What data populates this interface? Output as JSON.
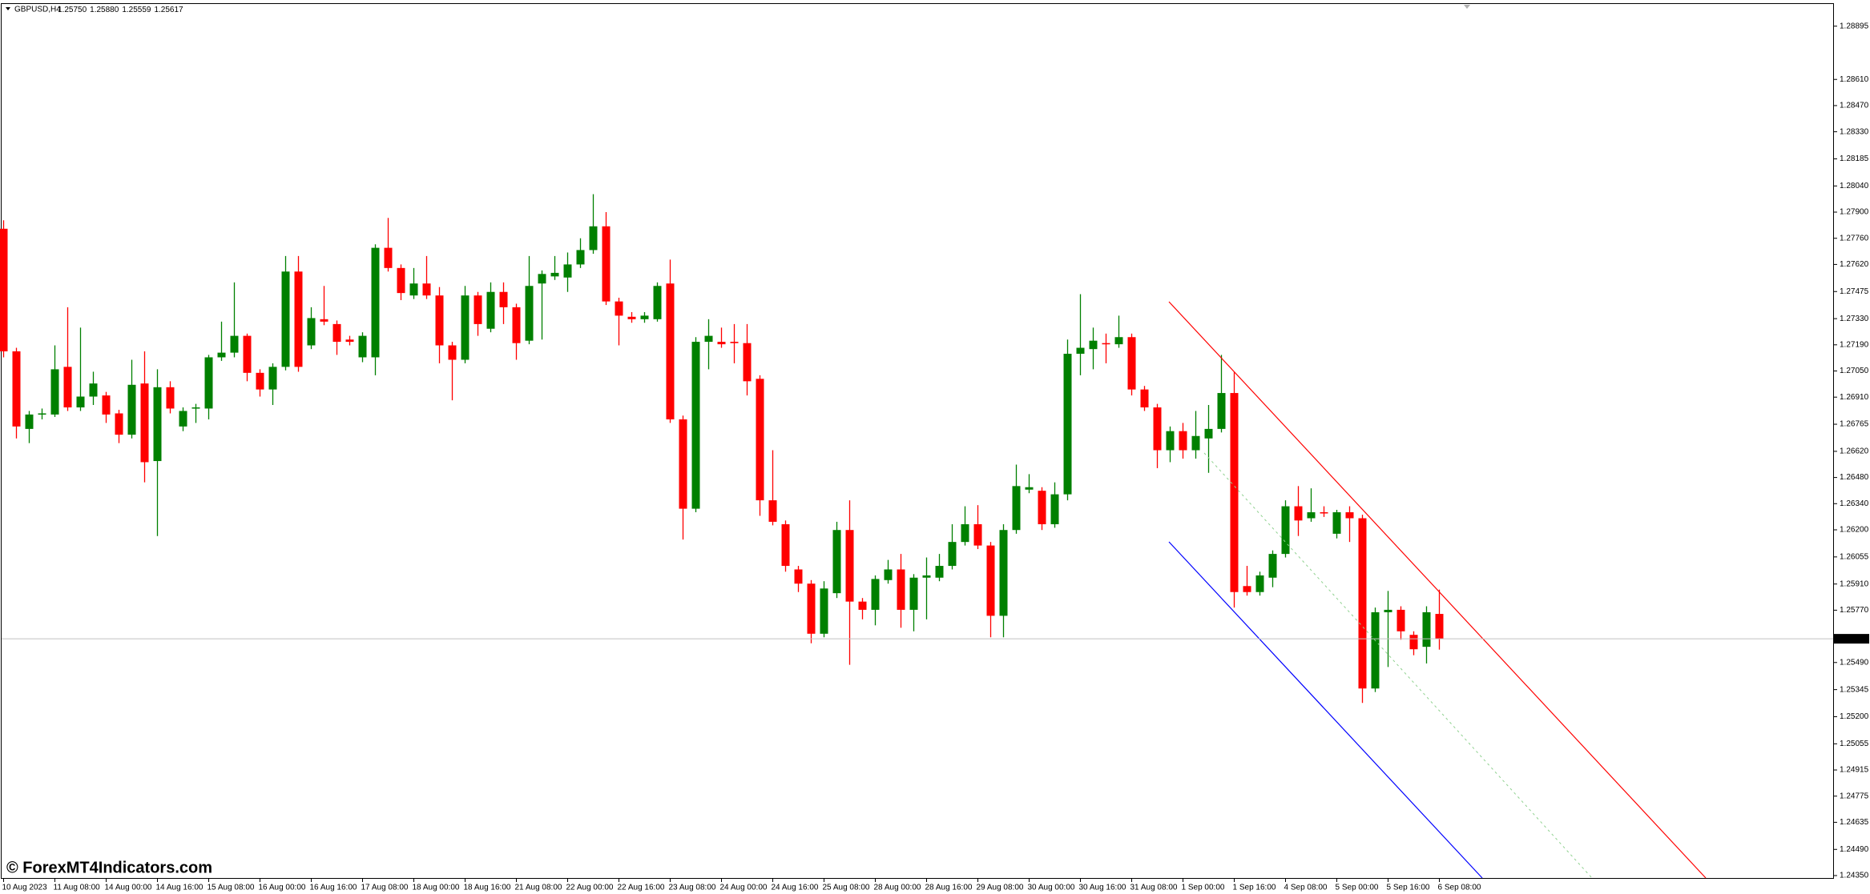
{
  "chart_data": {
    "type": "candlestick",
    "title": "GBPUSD,H4",
    "ohlc_labels": [
      "1.25750",
      "1.25880",
      "1.25559",
      "1.25617"
    ],
    "watermark": "© ForexMT4Indicators.com",
    "up_color": "#008000",
    "down_color": "#ff0000",
    "ylim": [
      1.24337,
      1.29035
    ],
    "current_price": {
      "value": 1.25617,
      "label": "1.25617"
    },
    "yticks": [
      {
        "value": 1.28895,
        "label": "1.28895"
      },
      {
        "value": 1.2861,
        "label": "1.28610"
      },
      {
        "value": 1.2847,
        "label": "1.28470"
      },
      {
        "value": 1.2833,
        "label": "1.28330"
      },
      {
        "value": 1.28185,
        "label": "1.28185"
      },
      {
        "value": 1.2804,
        "label": "1.28040"
      },
      {
        "value": 1.279,
        "label": "1.27900"
      },
      {
        "value": 1.2776,
        "label": "1.27760"
      },
      {
        "value": 1.2762,
        "label": "1.27620"
      },
      {
        "value": 1.27475,
        "label": "1.27475"
      },
      {
        "value": 1.2733,
        "label": "1.27330"
      },
      {
        "value": 1.2719,
        "label": "1.27190"
      },
      {
        "value": 1.2705,
        "label": "1.27050"
      },
      {
        "value": 1.2691,
        "label": "1.26910"
      },
      {
        "value": 1.26765,
        "label": "1.26765"
      },
      {
        "value": 1.2662,
        "label": "1.26620"
      },
      {
        "value": 1.2648,
        "label": "1.26480"
      },
      {
        "value": 1.2634,
        "label": "1.26340"
      },
      {
        "value": 1.262,
        "label": "1.26200"
      },
      {
        "value": 1.26055,
        "label": "1.26055"
      },
      {
        "value": 1.2591,
        "label": "1.25910"
      },
      {
        "value": 1.2577,
        "label": "1.25770"
      },
      {
        "value": 1.2549,
        "label": "1.25490"
      },
      {
        "value": 1.25345,
        "label": "1.25345"
      },
      {
        "value": 1.252,
        "label": "1.25200"
      },
      {
        "value": 1.25055,
        "label": "1.25055"
      },
      {
        "value": 1.24915,
        "label": "1.24915"
      },
      {
        "value": 1.24775,
        "label": "1.24775"
      },
      {
        "value": 1.24635,
        "label": "1.24635"
      },
      {
        "value": 1.2449,
        "label": "1.24490"
      },
      {
        "value": 1.2435,
        "label": "1.24350"
      }
    ],
    "categories": [
      "10 Aug 2023",
      null,
      null,
      null,
      "11 Aug 08:00",
      null,
      null,
      null,
      "14 Aug 00:00",
      null,
      null,
      null,
      "14 Aug 16:00",
      null,
      null,
      null,
      "15 Aug 08:00",
      null,
      null,
      null,
      "16 Aug 00:00",
      null,
      null,
      null,
      "16 Aug 16:00",
      null,
      null,
      null,
      "17 Aug 08:00",
      null,
      null,
      null,
      "18 Aug 00:00",
      null,
      null,
      null,
      "18 Aug 16:00",
      null,
      null,
      null,
      "21 Aug 08:00",
      null,
      null,
      null,
      "22 Aug 00:00",
      null,
      null,
      null,
      "22 Aug 16:00",
      null,
      null,
      null,
      "23 Aug 08:00",
      null,
      null,
      null,
      "24 Aug 00:00",
      null,
      null,
      null,
      "24 Aug 16:00",
      null,
      null,
      null,
      "25 Aug 08:00",
      null,
      null,
      null,
      "28 Aug 00:00",
      null,
      null,
      null,
      "28 Aug 16:00",
      null,
      null,
      null,
      "29 Aug 08:00",
      null,
      null,
      null,
      "30 Aug 00:00",
      null,
      null,
      null,
      "30 Aug 16:00",
      null,
      null,
      null,
      "31 Aug 08:00",
      null,
      null,
      null,
      "1 Sep 00:00",
      null,
      null,
      null,
      "1 Sep 16:00",
      null,
      null,
      null,
      "4 Sep 08:00",
      null,
      null,
      null,
      "5 Sep 00:00",
      null,
      null,
      null,
      "5 Sep 16:00",
      null,
      null,
      null,
      "6 Sep 08:00"
    ],
    "open": [
      1.27811,
      1.27155,
      1.2674,
      1.26817,
      1.26817,
      1.27072,
      1.26855,
      1.26913,
      1.26919,
      1.26823,
      1.26709,
      1.26983,
      1.26568,
      1.26963,
      1.26753,
      1.26849,
      1.26849,
      1.27123,
      1.27148,
      1.27238,
      1.2704,
      1.26951,
      1.27072,
      1.27582,
      1.27187,
      1.27327,
      1.27301,
      1.27218,
      1.27123,
      1.27123,
      1.27709,
      1.27601,
      1.27454,
      1.27518,
      1.27454,
      1.27187,
      1.2711,
      1.27454,
      1.27276,
      1.27473,
      1.27391,
      1.27212,
      1.27518,
      1.27556,
      1.2755,
      1.2762,
      1.27697,
      1.27824,
      1.27422,
      1.2734,
      1.27327,
      1.27327,
      1.27518,
      1.26791,
      1.26313,
      1.27206,
      1.27206,
      1.27206,
      1.27199,
      1.27008,
      1.26358,
      1.2623,
      1.25988,
      1.25912,
      1.25644,
      1.25861,
      1.26199,
      1.25816,
      1.25772,
      1.25931,
      1.25988,
      1.25772,
      1.25944,
      1.25944,
      1.26007,
      1.26135,
      1.2623,
      1.26116,
      1.2574,
      1.26199,
      1.26415,
      1.26409,
      1.2623,
      1.2639,
      1.27142,
      1.27167,
      1.27199,
      1.27193,
      1.27231,
      1.26951,
      1.26855,
      1.26626,
      1.26728,
      1.26626,
      1.26689,
      1.2674,
      1.26932,
      1.25899,
      1.25867,
      1.25944,
      1.26071,
      1.26326,
      1.26262,
      1.26294,
      1.26179,
      1.26294,
      1.26262,
      1.25351,
      1.25759,
      1.25772,
      1.25638,
      1.25574,
      1.2575
    ],
    "high": [
      1.27856,
      1.27174,
      1.26836,
      1.26849,
      1.27187,
      1.27391,
      1.27282,
      1.27046,
      1.26938,
      1.26842,
      1.2711,
      1.27155,
      1.27059,
      1.26995,
      1.26855,
      1.26874,
      1.27136,
      1.27314,
      1.27524,
      1.2725,
      1.27059,
      1.27091,
      1.27665,
      1.27665,
      1.27391,
      1.27505,
      1.2732,
      1.27238,
      1.27257,
      1.27728,
      1.27869,
      1.2762,
      1.27601,
      1.27665,
      1.27499,
      1.27206,
      1.27505,
      1.27473,
      1.27524,
      1.27524,
      1.2741,
      1.27665,
      1.27588,
      1.27665,
      1.27684,
      1.2776,
      1.27996,
      1.279,
      1.27442,
      1.27365,
      1.27365,
      1.27524,
      1.27646,
      1.26811,
      1.27231,
      1.27327,
      1.27282,
      1.27301,
      1.27301,
      1.27027,
      1.26626,
      1.2625,
      1.26007,
      1.25931,
      1.25925,
      1.26243,
      1.26358,
      1.25835,
      1.25956,
      1.26039,
      1.26071,
      1.25963,
      1.26052,
      1.26071,
      1.2623,
      1.26326,
      1.26332,
      1.26135,
      1.2623,
      1.26549,
      1.26498,
      1.26428,
      1.26454,
      1.27218,
      1.27461,
      1.27282,
      1.2725,
      1.27346,
      1.2725,
      1.2697,
      1.26874,
      1.26753,
      1.26772,
      1.26836,
      1.26868,
      1.27136,
      1.27046,
      1.26007,
      1.25976,
      1.2609,
      1.26358,
      1.26434,
      1.26422,
      1.26326,
      1.26307,
      1.26326,
      1.26281,
      1.25784,
      1.25873,
      1.25791,
      1.25657,
      1.25791,
      1.2588
    ],
    "low": [
      1.27123,
      1.26689,
      1.26664,
      1.26791,
      1.26804,
      1.26836,
      1.26836,
      1.26868,
      1.26772,
      1.26664,
      1.26689,
      1.26454,
      1.26167,
      1.26823,
      1.26728,
      1.26772,
      1.26791,
      1.27104,
      1.27123,
      1.26995,
      1.26913,
      1.26868,
      1.27053,
      1.27046,
      1.27167,
      1.27295,
      1.27136,
      1.27187,
      1.27097,
      1.27027,
      1.27582,
      1.27429,
      1.27435,
      1.27435,
      1.27091,
      1.26893,
      1.27091,
      1.27238,
      1.27257,
      1.27301,
      1.2711,
      1.27193,
      1.27218,
      1.27537,
      1.27473,
      1.27601,
      1.27677,
      1.27403,
      1.27187,
      1.27308,
      1.27308,
      1.27314,
      1.26772,
      1.26148,
      1.26294,
      1.27059,
      1.27174,
      1.27091,
      1.26919,
      1.26275,
      1.26224,
      1.25976,
      1.25867,
      1.25593,
      1.25625,
      1.25835,
      1.25478,
      1.25721,
      1.25689,
      1.25912,
      1.25676,
      1.25657,
      1.25721,
      1.25925,
      1.25988,
      1.26116,
      1.26097,
      1.25625,
      1.25625,
      1.26179,
      1.26396,
      1.26199,
      1.26211,
      1.26358,
      1.27027,
      1.27059,
      1.27091,
      1.27174,
      1.26919,
      1.26836,
      1.2653,
      1.26562,
      1.26581,
      1.26581,
      1.26505,
      1.26721,
      1.25784,
      1.25848,
      1.25848,
      1.25893,
      1.26052,
      1.26167,
      1.26243,
      1.26269,
      1.26154,
      1.26135,
      1.25274,
      1.25332,
      1.25466,
      1.25612,
      1.25529,
      1.25485,
      1.25559
    ],
    "close": [
      1.27155,
      1.26753,
      1.26817,
      1.26823,
      1.27059,
      1.26855,
      1.26913,
      1.26983,
      1.26817,
      1.26709,
      1.26976,
      1.26562,
      1.26963,
      1.26849,
      1.26836,
      1.26855,
      1.27123,
      1.27148,
      1.27238,
      1.2704,
      1.26951,
      1.27072,
      1.27582,
      1.27072,
      1.27333,
      1.27314,
      1.27206,
      1.27206,
      1.27238,
      1.27709,
      1.27601,
      1.27467,
      1.27518,
      1.27454,
      1.27187,
      1.2711,
      1.27454,
      1.27301,
      1.27473,
      1.27391,
      1.27199,
      1.27505,
      1.27569,
      1.27575,
      1.2762,
      1.27697,
      1.27824,
      1.27422,
      1.27346,
      1.27327,
      1.27346,
      1.27505,
      1.26791,
      1.26313,
      1.27206,
      1.27238,
      1.27193,
      1.27199,
      1.26995,
      1.26358,
      1.26243,
      1.26007,
      1.25912,
      1.25644,
      1.25886,
      1.26199,
      1.25816,
      1.25772,
      1.25937,
      1.25988,
      1.25772,
      1.25944,
      1.25956,
      1.26007,
      1.26135,
      1.2623,
      1.26116,
      1.2574,
      1.26199,
      1.26434,
      1.26428,
      1.2623,
      1.2639,
      1.27142,
      1.27174,
      1.27212,
      1.27193,
      1.27231,
      1.26951,
      1.26855,
      1.26626,
      1.26728,
      1.26626,
      1.26702,
      1.2674,
      1.26932,
      1.25867,
      1.25867,
      1.25956,
      1.26071,
      1.26326,
      1.2625,
      1.26294,
      1.26288,
      1.26294,
      1.26262,
      1.25351,
      1.25759,
      1.25772,
      1.25657,
      1.25561,
      1.25759,
      1.25617
    ]
  }
}
